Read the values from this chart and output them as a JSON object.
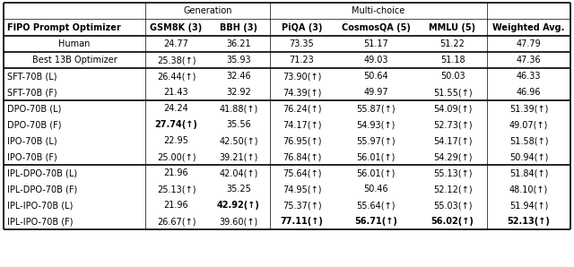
{
  "col_headers_row2": [
    "FIPO Prompt Optimizer",
    "GSM8K (3)",
    "BBH (3)",
    "PiQA (3)",
    "CosmosQA (5)",
    "MMLU (5)",
    "Weighted Avg."
  ],
  "rows": [
    {
      "label": "Human",
      "values": [
        "24.77",
        "36.21",
        "73.35",
        "51.17",
        "51.22",
        "47.79"
      ],
      "bold": [
        false,
        false,
        false,
        false,
        false,
        false
      ],
      "centered": true
    },
    {
      "label": "Best 13B Optimizer",
      "values": [
        "25.38(↑)",
        "35.93",
        "71.23",
        "49.03",
        "51.18",
        "47.36"
      ],
      "bold": [
        false,
        false,
        false,
        false,
        false,
        false
      ],
      "centered": true
    },
    {
      "label": "SFT-70B (L)",
      "values": [
        "26.44(↑)",
        "32.46",
        "73.90(↑)",
        "50.64",
        "50.03",
        "46.33"
      ],
      "bold": [
        false,
        false,
        false,
        false,
        false,
        false
      ],
      "centered": false
    },
    {
      "label": "SFT-70B (F)",
      "values": [
        "21.43",
        "32.92",
        "74.39(↑)",
        "49.97",
        "51.55(↑)",
        "46.96"
      ],
      "bold": [
        false,
        false,
        false,
        false,
        false,
        false
      ],
      "centered": false
    },
    {
      "label": "DPO-70B (L)",
      "values": [
        "24.24",
        "41.88(↑)",
        "76.24(↑)",
        "55.87(↑)",
        "54.09(↑)",
        "51.39(↑)"
      ],
      "bold": [
        false,
        false,
        false,
        false,
        false,
        false
      ],
      "centered": false
    },
    {
      "label": "DPO-70B (F)",
      "values": [
        "27.74(↑)",
        "35.56",
        "74.17(↑)",
        "54.93(↑)",
        "52.73(↑)",
        "49.07(↑)"
      ],
      "bold": [
        true,
        false,
        false,
        false,
        false,
        false
      ],
      "centered": false
    },
    {
      "label": "IPO-70B (L)",
      "values": [
        "22.95",
        "42.50(↑)",
        "76.95(↑)",
        "55.97(↑)",
        "54.17(↑)",
        "51.58(↑)"
      ],
      "bold": [
        false,
        false,
        false,
        false,
        false,
        false
      ],
      "centered": false
    },
    {
      "label": "IPO-70B (F)",
      "values": [
        "25.00(↑)",
        "39.21(↑)",
        "76.84(↑)",
        "56.01(↑)",
        "54.29(↑)",
        "50.94(↑)"
      ],
      "bold": [
        false,
        false,
        false,
        false,
        false,
        false
      ],
      "centered": false
    },
    {
      "label": "IPL-DPO-70B (L)",
      "values": [
        "21.96",
        "42.04(↑)",
        "75.64(↑)",
        "56.01(↑)",
        "55.13(↑)",
        "51.84(↑)"
      ],
      "bold": [
        false,
        false,
        false,
        false,
        false,
        false
      ],
      "centered": false
    },
    {
      "label": "IPL-DPO-70B (F)",
      "values": [
        "25.13(↑)",
        "35.25",
        "74.95(↑)",
        "50.46",
        "52.12(↑)",
        "48.10(↑)"
      ],
      "bold": [
        false,
        false,
        false,
        false,
        false,
        false
      ],
      "centered": false
    },
    {
      "label": "IPL-IPO-70B (L)",
      "values": [
        "21.96",
        "42.92(↑)",
        "75.37(↑)",
        "55.64(↑)",
        "55.03(↑)",
        "51.94(↑)"
      ],
      "bold": [
        false,
        true,
        false,
        false,
        false,
        false
      ],
      "centered": false
    },
    {
      "label": "IPL-IPO-70B (F)",
      "values": [
        "26.67(↑)",
        "39.60(↑)",
        "77.11(↑)",
        "56.71(↑)",
        "56.02(↑)",
        "52.13(↑)"
      ],
      "bold": [
        false,
        false,
        true,
        true,
        true,
        true
      ],
      "centered": false
    }
  ],
  "sep_after_rows": [
    0,
    1,
    3,
    7
  ],
  "bg_color": "#ffffff",
  "font_size": 7.0,
  "font_family": "DejaVu Sans"
}
